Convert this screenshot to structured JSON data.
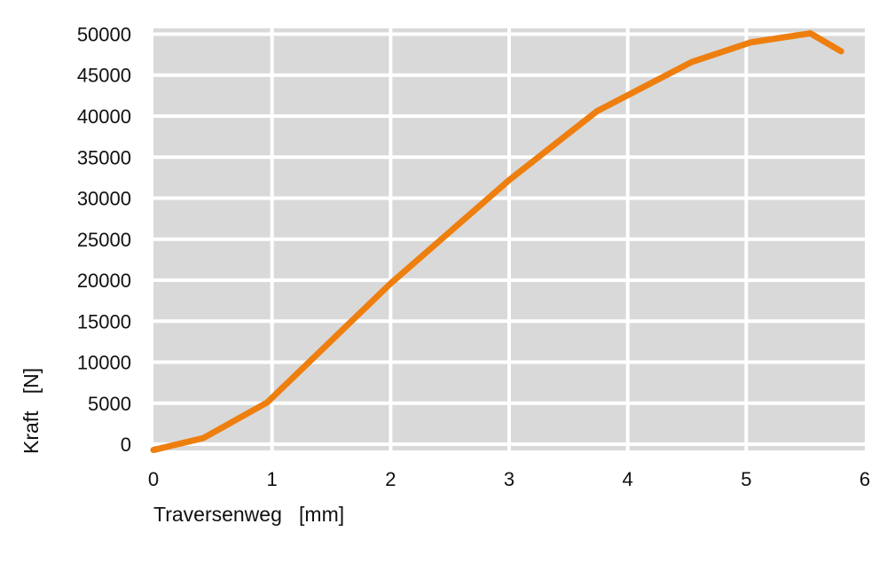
{
  "chart_data": {
    "type": "line",
    "title": "",
    "xlabel": "Traversenweg   [mm]",
    "ylabel": "Kraft   [N]",
    "xlim": [
      0,
      6
    ],
    "ylim": [
      -750,
      50700
    ],
    "xticks": [
      "0",
      "1",
      "2",
      "3",
      "4",
      "5",
      "6"
    ],
    "yticks": [
      "0",
      "5000",
      "10000",
      "15000",
      "20000",
      "25000",
      "30000",
      "35000",
      "40000",
      "45000",
      "50000"
    ],
    "grid": true,
    "legend": "none",
    "colors": {
      "line": "#EE7F0E",
      "plot_bg": "#D9D9D9",
      "grid": "#FFFFFF"
    },
    "series": [
      {
        "x": [
          0,
          0.42,
          0.96,
          2.0,
          3.0,
          3.74,
          4.54,
          5.04,
          5.54,
          5.8
        ],
        "y": [
          -700,
          750,
          5100,
          19600,
          32200,
          40600,
          46600,
          49000,
          50100,
          47900
        ]
      }
    ]
  }
}
